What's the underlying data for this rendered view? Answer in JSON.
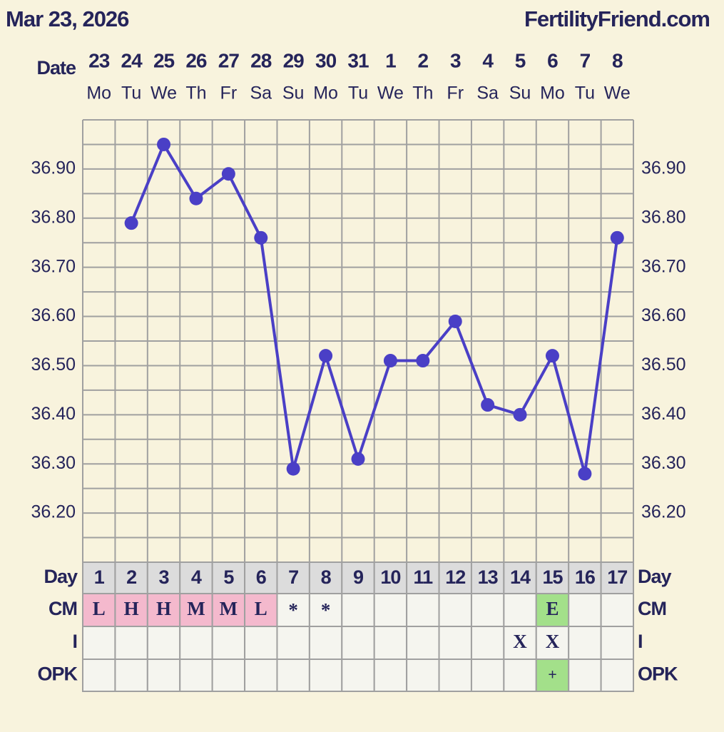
{
  "header": {
    "date": "Mar 23, 2026",
    "site": "FertilityFriend.com"
  },
  "chart_data": {
    "type": "line",
    "row_labels": {
      "date": "Date",
      "day": "Day",
      "cm": "CM",
      "i": "I",
      "opk": "OPK"
    },
    "dates": [
      "23",
      "24",
      "25",
      "26",
      "27",
      "28",
      "29",
      "30",
      "31",
      "1",
      "2",
      "3",
      "4",
      "5",
      "6",
      "7",
      "8"
    ],
    "weekdays": [
      "Mo",
      "Tu",
      "We",
      "Th",
      "Fr",
      "Sa",
      "Su",
      "Mo",
      "Tu",
      "We",
      "Th",
      "Fr",
      "Sa",
      "Su",
      "Mo",
      "Tu",
      "We"
    ],
    "x": [
      1,
      2,
      3,
      4,
      5,
      6,
      7,
      8,
      9,
      10,
      11,
      12,
      13,
      14,
      15,
      16,
      17
    ],
    "xlim": [
      0.5,
      17.5
    ],
    "values": [
      null,
      36.79,
      36.95,
      36.84,
      36.89,
      36.76,
      36.29,
      36.52,
      36.31,
      36.51,
      36.51,
      36.59,
      36.42,
      36.4,
      36.52,
      36.28,
      36.76
    ],
    "color": "#4a3fc6",
    "ylim": [
      36.1,
      37.0
    ],
    "yticks": [
      {
        "value": 36.2,
        "label": "36.20"
      },
      {
        "value": 36.3,
        "label": "36.30"
      },
      {
        "value": 36.4,
        "label": "36.40"
      },
      {
        "value": 36.5,
        "label": "36.50"
      },
      {
        "value": 36.6,
        "label": "36.60"
      },
      {
        "value": 36.7,
        "label": "36.70"
      },
      {
        "value": 36.8,
        "label": "36.80"
      },
      {
        "value": 36.9,
        "label": "36.90"
      }
    ],
    "ygrid": [
      36.1,
      36.15,
      36.2,
      36.25,
      36.3,
      36.35,
      36.4,
      36.45,
      36.5,
      36.55,
      36.6,
      36.65,
      36.7,
      36.75,
      36.8,
      36.85,
      36.9,
      36.95,
      37.0
    ],
    "grid": true,
    "cm": [
      "L",
      "H",
      "H",
      "M",
      "M",
      "L",
      "*",
      "*",
      null,
      null,
      null,
      null,
      null,
      null,
      "E",
      null,
      null
    ],
    "cm_colors": [
      "#f4b9cd",
      "#f4b9cd",
      "#f4b9cd",
      "#f4b9cd",
      "#f4b9cd",
      "#f4b9cd",
      null,
      null,
      null,
      null,
      null,
      null,
      null,
      null,
      "#a3e08a",
      null,
      null
    ],
    "i": [
      null,
      null,
      null,
      null,
      null,
      null,
      null,
      null,
      null,
      null,
      null,
      null,
      null,
      "X",
      "X",
      null,
      null
    ],
    "opk": [
      null,
      null,
      null,
      null,
      null,
      null,
      null,
      null,
      null,
      null,
      null,
      null,
      null,
      null,
      "+",
      null,
      null
    ],
    "opk_colors": [
      null,
      null,
      null,
      null,
      null,
      null,
      null,
      null,
      null,
      null,
      null,
      null,
      null,
      null,
      "#a3e08a",
      null,
      null
    ]
  }
}
